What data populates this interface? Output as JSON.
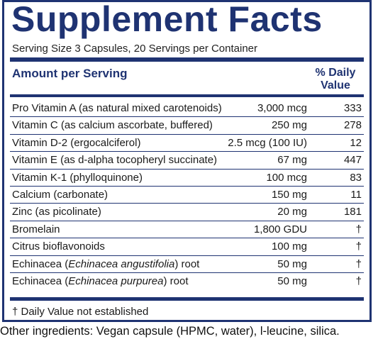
{
  "title": "Supplement Facts",
  "serving_info": "Serving Size 3 Capsules, 20 Servings per Container",
  "amount_header": "Amount per Serving",
  "dv_header_line1": "% Daily",
  "dv_header_line2": "Value",
  "rows": [
    {
      "name": "Pro Vitamin A (as natural mixed carotenoids)",
      "amount": "3,000 mcg",
      "dv": "333"
    },
    {
      "name": "Vitamin C (as calcium ascorbate, buffered)",
      "amount": "250 mg",
      "dv": "278"
    },
    {
      "name": "Vitamin D-2 (ergocalciferol)",
      "amount": "2.5 mcg (100 IU)",
      "dv": "12"
    },
    {
      "name": "Vitamin E (as d-alpha tocopheryl succinate)",
      "amount": "67 mg",
      "dv": "447"
    },
    {
      "name": "Vitamin K-1 (phylloquinone)",
      "amount": "100 mcg",
      "dv": "83"
    },
    {
      "name": "Calcium (carbonate)",
      "amount": "150 mg",
      "dv": "11"
    },
    {
      "name": "Zinc (as picolinate)",
      "amount": "20 mg",
      "dv": "181"
    },
    {
      "name": "Bromelain",
      "amount": "1,800 GDU",
      "dv": "†"
    },
    {
      "name": "Citrus bioflavonoids",
      "amount": "100 mg",
      "dv": "†"
    },
    {
      "name_prefix": "Echinacea (",
      "name_italic": "Echinacea angustifolia",
      "name_suffix": ") root",
      "amount": "50 mg",
      "dv": "†"
    },
    {
      "name_prefix": "Echinacea (",
      "name_italic": "Echinacea purpurea",
      "name_suffix": ") root",
      "amount": "50 mg",
      "dv": "†"
    }
  ],
  "footnote": "† Daily Value not established",
  "other_ingredients": "Other ingredients: Vegan capsule (HPMC, water), l-leucine, silica.",
  "colors": {
    "accent": "#1f3372"
  }
}
